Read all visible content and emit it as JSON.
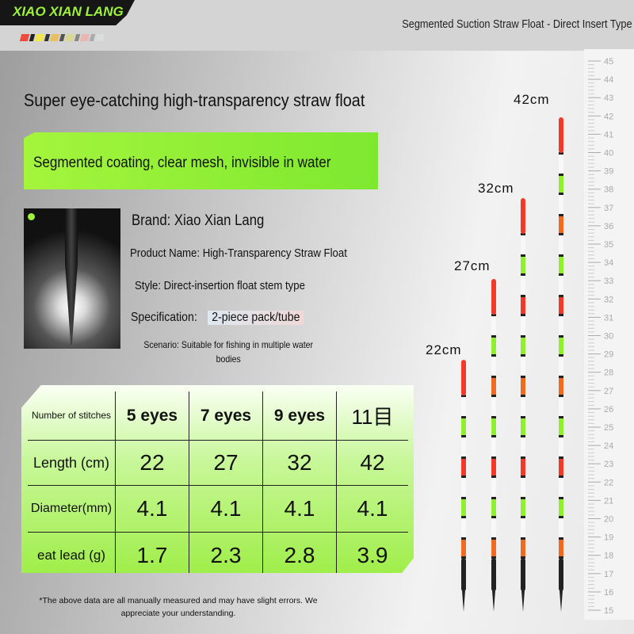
{
  "header": {
    "brand": "XIAO XIAN LANG",
    "subtitle": "Segmented Suction Straw Float - Direct Insert Type",
    "swatch_colors": [
      "#f04a3a",
      "#222",
      "#f0e84a",
      "#333",
      "#e8c060",
      "#555",
      "#d8d890",
      "#888",
      "#e8b8b0",
      "#aaa",
      "#d8dde0"
    ]
  },
  "headline": "Super eye-catching high-transparency straw float",
  "banner": "Segmented coating, clear mesh, invisible in water",
  "info": {
    "brand": "Brand: Xiao Xian Lang",
    "product": "Product Name: High-Transparency Straw Float",
    "style": "Style: Direct-insertion float stem type",
    "spec_label": "Specification:",
    "spec_value": "2-piece pack/tube",
    "scenario": "Scenario: Suitable for fishing in multiple water bodies"
  },
  "table": {
    "corner": "Number of stitches",
    "columns": [
      "5 eyes",
      "7 eyes",
      "9 eyes",
      "11目"
    ],
    "rows": [
      {
        "label": "Length (cm)",
        "values": [
          "22",
          "27",
          "32",
          "42"
        ]
      },
      {
        "label": "Diameter(mm)",
        "values": [
          "4.1",
          "4.1",
          "4.1",
          "4.1"
        ]
      },
      {
        "label": "eat lead (g)",
        "values": [
          "1.7",
          "2.3",
          "2.8",
          "3.9"
        ]
      }
    ]
  },
  "note": "*The above data are all manually measured and may have slight errors. We appreciate your understanding.",
  "floats": [
    {
      "label": "22cm",
      "segments_bottom_up": [
        "orange",
        "green",
        "red",
        "green"
      ]
    },
    {
      "label": "27cm",
      "segments_bottom_up": [
        "orange",
        "green",
        "red",
        "green",
        "orange",
        "green"
      ]
    },
    {
      "label": "32cm",
      "segments_bottom_up": [
        "orange",
        "green",
        "red",
        "green",
        "orange",
        "green",
        "red",
        "green"
      ]
    },
    {
      "label": "42cm",
      "segments_bottom_up": [
        "orange",
        "green",
        "red",
        "green",
        "orange",
        "green",
        "red",
        "green",
        "orange",
        "green"
      ]
    }
  ],
  "colors": {
    "red": "#f23a2a",
    "green": "#8ef02e",
    "orange": "#f06a22",
    "tip": "#f23a2a"
  },
  "ruler": {
    "min": 15,
    "max": 45
  }
}
